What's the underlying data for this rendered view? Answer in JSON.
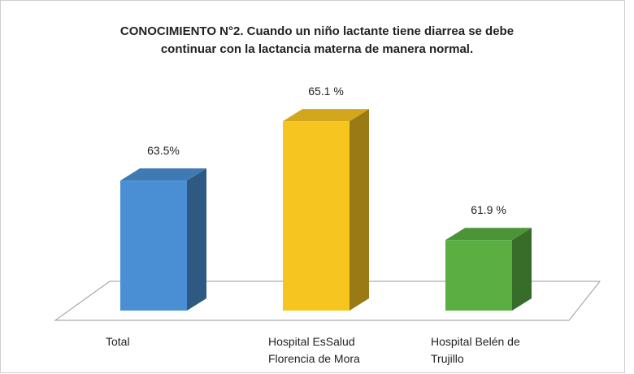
{
  "chart_data": {
    "type": "bar3d",
    "title": "CONOCIMIENTO N°2. Cuando un niño lactante tiene diarrea se debe\ncontinuar con la lactancia materna de manera normal.",
    "categories": [
      "Total",
      "Hospital EsSalud\nFlorencia de Mora",
      "Hospital Belén de\nTrujillo"
    ],
    "values": [
      63.5,
      65.1,
      61.9
    ],
    "value_labels": [
      "63.5%",
      "65.1 %",
      "61.9 %"
    ],
    "colors": [
      "#4a8fd4",
      "#f7c520",
      "#5aae42"
    ],
    "ylim": [
      60,
      66
    ]
  }
}
